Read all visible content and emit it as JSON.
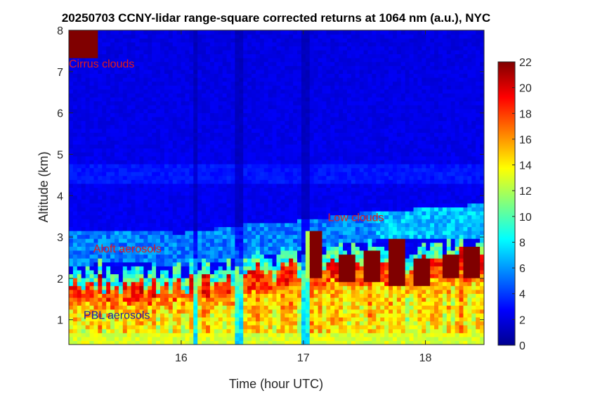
{
  "chart_data": {
    "type": "heatmap",
    "title": "20250703 CCNY-lidar range-square corrected returns at 1064 nm (a.u.), NYC",
    "xlabel": "Time (hour UTC)",
    "ylabel": "Altitude (km)",
    "xlim": [
      15.08,
      18.48
    ],
    "ylim": [
      0.4,
      8.0
    ],
    "xticks": [
      16,
      17,
      18
    ],
    "yticks": [
      1,
      2,
      3,
      4,
      5,
      6,
      7,
      8
    ],
    "colorbar": {
      "range": [
        0,
        22
      ],
      "ticks": [
        0,
        2,
        4,
        6,
        8,
        10,
        12,
        14,
        16,
        18,
        20,
        22
      ],
      "colormap": "jet"
    },
    "grid": false,
    "layers": {
      "pbl_top_km": [
        {
          "t": 15.08,
          "h": 1.8
        },
        {
          "t": 15.3,
          "h": 1.9
        },
        {
          "t": 15.6,
          "h": 1.8
        },
        {
          "t": 15.9,
          "h": 1.9
        },
        {
          "t": 16.2,
          "h": 1.9
        },
        {
          "t": 16.5,
          "h": 2.1
        },
        {
          "t": 16.8,
          "h": 2.2
        },
        {
          "t": 17.1,
          "h": 2.3
        },
        {
          "t": 17.4,
          "h": 2.4
        },
        {
          "t": 17.7,
          "h": 2.4
        },
        {
          "t": 18.0,
          "h": 2.4
        },
        {
          "t": 18.3,
          "h": 2.5
        },
        {
          "t": 18.48,
          "h": 2.5
        }
      ],
      "aloft_aerosol_km": [
        {
          "t": 15.08,
          "lo": 2.3,
          "hi": 3.2
        },
        {
          "t": 15.5,
          "lo": 2.4,
          "hi": 3.15
        },
        {
          "t": 16.0,
          "lo": 2.3,
          "hi": 3.1
        },
        {
          "t": 16.5,
          "lo": 2.5,
          "hi": 3.3
        },
        {
          "t": 17.0,
          "lo": 2.7,
          "hi": 3.4
        },
        {
          "t": 17.5,
          "lo": 2.9,
          "hi": 3.6
        },
        {
          "t": 18.0,
          "lo": 3.0,
          "hi": 3.7
        },
        {
          "t": 18.48,
          "lo": 3.0,
          "hi": 3.8
        }
      ],
      "low_clouds": [
        {
          "t": 17.1,
          "base": 2.0,
          "top": 3.2
        },
        {
          "t": 17.35,
          "base": 1.9,
          "top": 2.6
        },
        {
          "t": 17.55,
          "base": 1.9,
          "top": 2.7
        },
        {
          "t": 17.78,
          "base": 1.8,
          "top": 3.0
        },
        {
          "t": 17.98,
          "base": 1.8,
          "top": 2.5
        },
        {
          "t": 18.2,
          "base": 2.0,
          "top": 2.6
        },
        {
          "t": 18.38,
          "base": 2.0,
          "top": 2.8
        }
      ],
      "cirrus": {
        "t_start": 15.08,
        "t_end": 15.32,
        "base_km": 7.3,
        "top_km": 8.0
      }
    },
    "annotations": [
      {
        "text": "Cirrus clouds",
        "t": 15.08,
        "h": 7.1,
        "color": "#e41a1c"
      },
      {
        "text": "Low clouds",
        "t": 17.2,
        "h": 3.38,
        "color": "#e41a1c"
      },
      {
        "text": "Aloft aerosols",
        "t": 15.28,
        "h": 2.63,
        "color": "#e41a1c"
      },
      {
        "text": "PBL aerosols",
        "t": 15.2,
        "h": 1.02,
        "color": "#1e1ea8"
      }
    ]
  }
}
